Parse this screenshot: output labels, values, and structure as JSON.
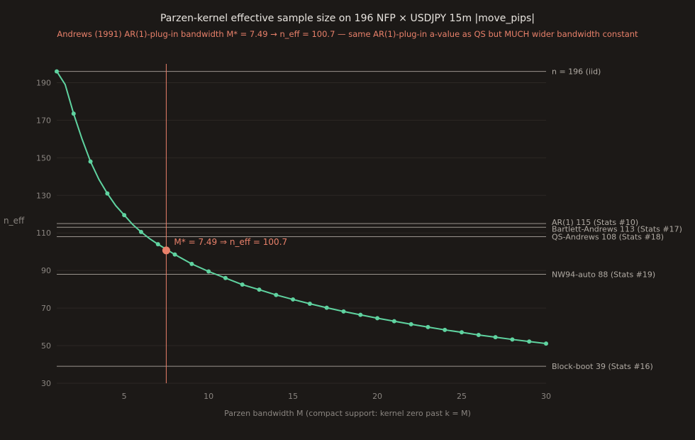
{
  "colors": {
    "background": "#1c1917",
    "grid": "#2c2825",
    "curve": "#5fd3a0",
    "highlight": "#e8806a",
    "reference": "#9a948e",
    "text": "#e8e4df",
    "muted": "#8a8580"
  },
  "chart_data": {
    "type": "line",
    "title": "Parzen-kernel effective sample size on 196 NFP × USDJPY 15m |move_pips|",
    "subtitle": "Andrews (1991) AR(1)-plug-in bandwidth M* = 7.49 → n_eff = 100.7 — same AR(1)-plug-in a-value as QS but MUCH wider bandwidth constant",
    "xlabel": "Parzen bandwidth M (compact support: kernel zero past k = M)",
    "ylabel": "n_eff",
    "xlim": [
      1,
      30
    ],
    "ylim": [
      30,
      200
    ],
    "xticks": [
      5,
      10,
      15,
      20,
      25,
      30
    ],
    "yticks": [
      30,
      50,
      70,
      90,
      110,
      130,
      150,
      170,
      190
    ],
    "grid": true,
    "series": [
      {
        "x": [
          1,
          1.5,
          2,
          2.5,
          3,
          3.5,
          4,
          4.5,
          5,
          5.5,
          6,
          6.5,
          7,
          8,
          9,
          10,
          11,
          12,
          13,
          14,
          15,
          16,
          17,
          18,
          19,
          20,
          21,
          22,
          23,
          24,
          25,
          26,
          27,
          28,
          29,
          30
        ],
        "y": [
          196,
          189,
          173.5,
          160,
          148,
          138.5,
          131,
          124.5,
          119.5,
          114.5,
          110.5,
          107,
          104,
          98.5,
          93.5,
          89.5,
          86,
          82.5,
          79.8,
          77,
          74.6,
          72.3,
          70.2,
          68.2,
          66.4,
          64.6,
          63,
          61.4,
          59.9,
          58.4,
          57.1,
          55.7,
          54.5,
          53.3,
          52.2,
          51.1
        ],
        "markers_x": [
          1,
          2,
          3,
          4,
          5,
          6,
          7,
          8,
          9,
          10,
          11,
          12,
          13,
          14,
          15,
          16,
          17,
          18,
          19,
          20,
          21,
          22,
          23,
          24,
          25,
          26,
          27,
          28,
          29,
          30
        ]
      }
    ],
    "highlight_point": {
      "x": 7.49,
      "y": 100.7,
      "label": "M* = 7.49 ⇒ n_eff = 100.7"
    },
    "vertical_line_x": 7.49,
    "reference_lines": [
      {
        "y": 196,
        "label": "n = 196 (iid)"
      },
      {
        "y": 115,
        "label": "AR(1) 115 (Stats #10)"
      },
      {
        "y": 113,
        "label": "Bartlett-Andrews 113 (Stats #17)"
      },
      {
        "y": 108,
        "label": "QS-Andrews 108 (Stats #18)"
      },
      {
        "y": 88,
        "label": "NW94-auto 88 (Stats #19)"
      },
      {
        "y": 39,
        "label": "Block-boot 39 (Stats #16)"
      }
    ]
  }
}
